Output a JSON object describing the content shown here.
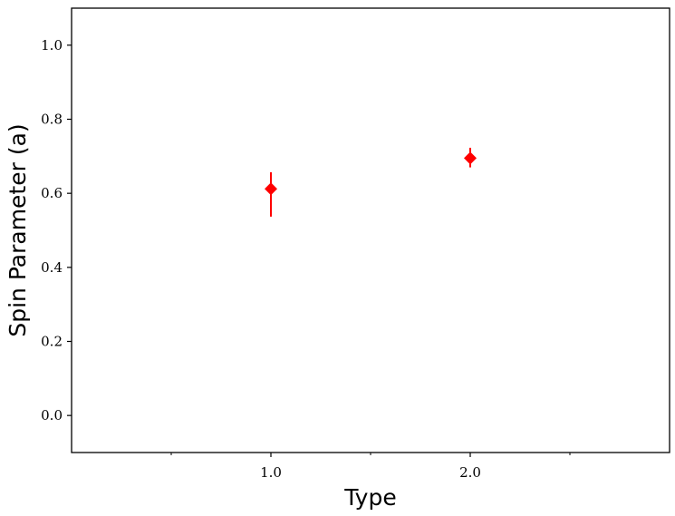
{
  "chart_data": {
    "type": "scatter",
    "title": "",
    "xlabel": "Type",
    "ylabel": "Spin Parameter (a)",
    "xlim": [
      0.0,
      3.0
    ],
    "ylim": [
      -0.1,
      1.1
    ],
    "x_ticks": [
      1.0,
      2.0
    ],
    "x_tick_labels": [
      "1.0",
      "2.0"
    ],
    "x_minor_ticks": [
      0.5,
      1.5,
      2.5
    ],
    "y_ticks": [
      0.0,
      0.2,
      0.4,
      0.6,
      0.8,
      1.0
    ],
    "y_tick_labels": [
      "0.0",
      "0.2",
      "0.4",
      "0.6",
      "0.8",
      "1.0"
    ],
    "grid": false,
    "marker": "diamond",
    "color": "#ff0000",
    "points": [
      {
        "x": 1.0,
        "y": 0.612,
        "err_low": 0.075,
        "err_high": 0.045
      },
      {
        "x": 2.0,
        "y": 0.695,
        "err_low": 0.025,
        "err_high": 0.028
      }
    ]
  }
}
